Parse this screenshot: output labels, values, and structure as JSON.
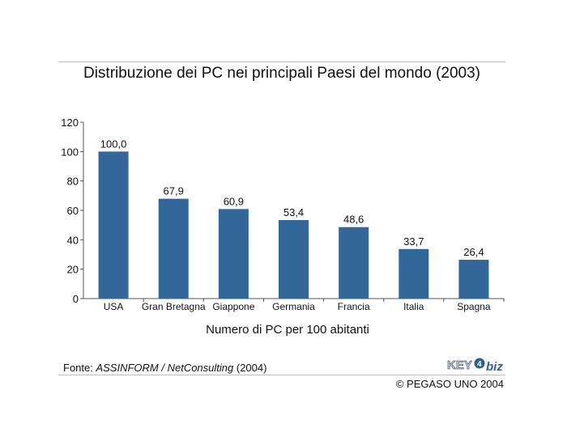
{
  "title": "Distribuzione dei PC nei principali Paesi del mondo (2003)",
  "axis_caption": "Numero di PC per 100 abitanti",
  "source": {
    "prefix": "Fonte: ",
    "org": "ASSINFORM / NetConsulting",
    "year": " (2004)"
  },
  "copyright": "© PEGASO UNO 2004",
  "logo": {
    "part1": "KEY",
    "part2": "biz",
    "icon": "key4biz-logo"
  },
  "colors": {
    "bar": "#336699",
    "axis": "#555555",
    "rule": "#bdbdbd"
  },
  "chart_data": {
    "type": "bar",
    "title": "Distribuzione dei PC nei principali Paesi del mondo (2003)",
    "xlabel": "Numero di PC per 100 abitanti",
    "ylabel": "",
    "categories": [
      "USA",
      "Gran Bretagna",
      "Giappone",
      "Germania",
      "Francia",
      "Italia",
      "Spagna"
    ],
    "values": [
      100.0,
      67.9,
      60.9,
      53.4,
      48.6,
      33.7,
      26.4
    ],
    "value_labels": [
      "100,0",
      "67,9",
      "60,9",
      "53,4",
      "48,6",
      "33,7",
      "26,4"
    ],
    "ylim": [
      0,
      120
    ],
    "yticks": [
      0,
      20,
      40,
      60,
      80,
      100,
      120
    ],
    "grid": false,
    "legend": "none"
  }
}
